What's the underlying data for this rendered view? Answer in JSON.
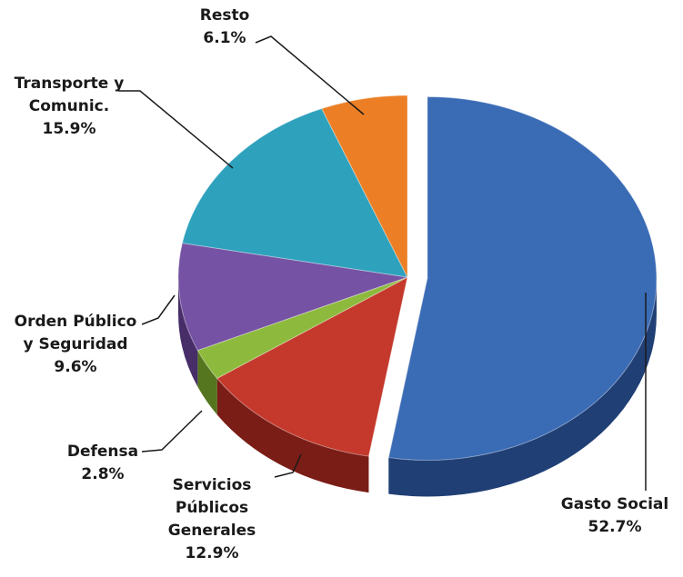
{
  "chart_data": {
    "type": "pie",
    "title": "",
    "slices": [
      {
        "label_lines": [
          "Gasto Social"
        ],
        "value": 52.7,
        "value_text": "52.7%",
        "color": "#3a6bb5",
        "dark": "#203f75",
        "exploded": true
      },
      {
        "label_lines": [
          "Servicios",
          "Públicos",
          "Generales"
        ],
        "value": 12.9,
        "value_text": "12.9%",
        "color": "#c4392c",
        "dark": "#7a1d16",
        "exploded": false
      },
      {
        "label_lines": [
          "Defensa"
        ],
        "value": 2.8,
        "value_text": "2.8%",
        "color": "#8dba3d",
        "dark": "#55761f",
        "exploded": false
      },
      {
        "label_lines": [
          "Orden Público",
          "y Seguridad"
        ],
        "value": 9.6,
        "value_text": "9.6%",
        "color": "#7552a3",
        "dark": "#472e69",
        "exploded": false
      },
      {
        "label_lines": [
          "Transporte y",
          "Comunic."
        ],
        "value": 15.9,
        "value_text": "15.9%",
        "color": "#2ea1bd",
        "dark": "#186478",
        "exploded": false
      },
      {
        "label_lines": [
          "Resto"
        ],
        "value": 6.1,
        "value_text": "6.1%",
        "color": "#ec7f25",
        "dark": "#9a4d10",
        "exploded": false
      }
    ],
    "style": "3d-exploded"
  }
}
